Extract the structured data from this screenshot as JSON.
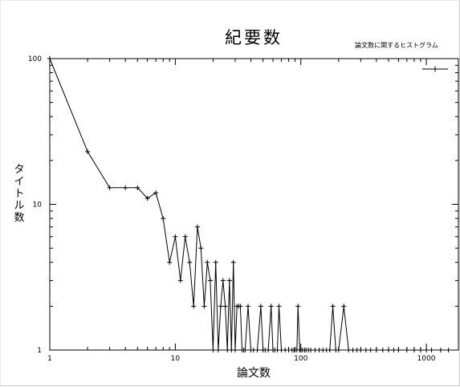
{
  "chart_data": {
    "type": "line",
    "title": "紀要数",
    "subtitle": "論文数に関するヒストグラム",
    "xlabel": "論文数",
    "ylabel": "タイトル数",
    "x_scale": "log",
    "y_scale": "log",
    "xlim": [
      1,
      1800
    ],
    "ylim": [
      1,
      100
    ],
    "x_ticks": [
      1,
      10,
      100,
      1000
    ],
    "x_tick_labels": [
      "1",
      "10",
      "100",
      "1000"
    ],
    "y_ticks": [
      1,
      10,
      100
    ],
    "y_tick_labels": [
      "1",
      "10",
      "100"
    ],
    "legend": {
      "position": "top-right",
      "entries": [
        ""
      ]
    },
    "grid": false,
    "line_color": "#000000",
    "series": [
      {
        "x": [
          1,
          2,
          3,
          4,
          5,
          6,
          7,
          8,
          9,
          10,
          11,
          12,
          13,
          14,
          15,
          16,
          17,
          18,
          19,
          20,
          21,
          22,
          23,
          24,
          25,
          26,
          27,
          28,
          29,
          30,
          31,
          32,
          33,
          34,
          35,
          36,
          38,
          40,
          42,
          45,
          48,
          50,
          52,
          55,
          58,
          60,
          62,
          65,
          67,
          70,
          75,
          80,
          85,
          88,
          90,
          93,
          95,
          98,
          100,
          103,
          107,
          110,
          115,
          120,
          130,
          140,
          150,
          160,
          170,
          180,
          190,
          200,
          220,
          240,
          260,
          280,
          300,
          330,
          360,
          400,
          450,
          500,
          550,
          600,
          700,
          800,
          900,
          1000,
          1100,
          1300,
          1500
        ],
        "y": [
          100,
          23,
          13,
          13,
          13,
          11,
          12,
          8,
          4,
          6,
          3,
          6,
          4,
          2,
          7,
          5,
          2,
          4,
          3,
          1,
          4,
          1,
          2,
          3,
          2,
          1,
          3,
          1,
          4,
          1,
          2,
          2,
          2,
          1,
          1,
          1,
          2,
          1,
          1,
          1,
          2,
          1,
          1,
          1,
          2,
          1,
          1,
          1,
          2,
          1,
          1,
          1,
          1,
          1,
          1,
          1,
          2,
          1,
          1,
          1,
          1,
          1,
          1,
          1,
          1,
          1,
          1,
          1,
          1,
          2,
          1,
          1,
          2,
          1,
          1,
          1,
          1,
          1,
          1,
          1,
          1,
          1,
          1,
          1,
          1,
          1,
          1,
          1,
          1,
          1,
          1
        ]
      }
    ]
  }
}
